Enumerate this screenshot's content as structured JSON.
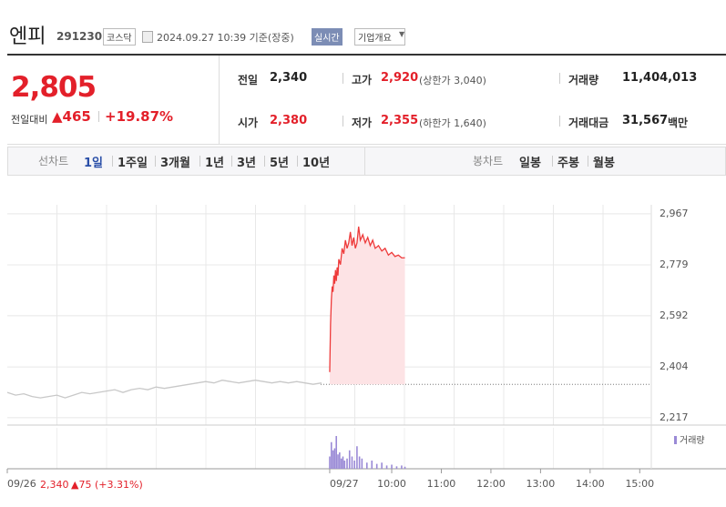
{
  "header": {
    "name": "엔피",
    "code": "291230",
    "market": "코스닥",
    "timestamp": "2024.09.27 10:39 기준(장중)",
    "realtime": "실시간",
    "company_info": "기업개요"
  },
  "quote": {
    "price": "2,805",
    "change_label": "전일대비",
    "change": "▲465",
    "change_rate": "+19.87%",
    "stats": [
      {
        "label": "전일",
        "value": "2,340"
      },
      {
        "label": "고가",
        "value": "2,920",
        "note": "(상한가 3,040)"
      },
      {
        "label": "거래량",
        "value": "11,404,013"
      },
      {
        "label": "시가",
        "value": "2,380"
      },
      {
        "label": "저가",
        "value": "2,355",
        "note": "(하한가 1,640)"
      },
      {
        "label": "거래대금",
        "value": "31,567",
        "unit": "백만"
      }
    ]
  },
  "tabs": {
    "line_label": "선차트",
    "line": [
      "1일",
      "1주일",
      "3개월",
      "1년",
      "3년",
      "5년",
      "10년"
    ],
    "candle_label": "봉차트",
    "candle": [
      "일봉",
      "주봉",
      "월봉"
    ]
  },
  "chart_data": [
    {
      "type": "line",
      "baseline": 2340,
      "grid": true,
      "series": [
        {
          "color": "#c8c8c8",
          "x": [
            -405,
            -395,
            -385,
            -375,
            -365,
            -355,
            -345,
            -335,
            -325,
            -315,
            -305,
            -295,
            -285,
            -275,
            -265,
            -255,
            -245,
            -235,
            -225,
            -215,
            -205,
            -195,
            -185,
            -175,
            -165,
            -155,
            -145,
            -135,
            -125,
            -115,
            -105,
            -95,
            -85,
            -75,
            -65,
            -55,
            -45,
            -35,
            -25
          ],
          "values": [
            2310,
            2300,
            2305,
            2295,
            2290,
            2295,
            2300,
            2290,
            2300,
            2310,
            2305,
            2310,
            2315,
            2320,
            2310,
            2320,
            2325,
            2320,
            2330,
            2325,
            2330,
            2335,
            2340,
            2345,
            2350,
            2345,
            2355,
            2350,
            2345,
            2350,
            2355,
            2350,
            2345,
            2350,
            2345,
            2350,
            2345,
            2340,
            2345
          ]
        },
        {
          "color": "#ee3a3a",
          "fill": "#fde3e5",
          "x": [
            -15,
            -14,
            -13,
            -12,
            -11,
            -10,
            -9,
            -8,
            -7,
            -6,
            -5,
            -4,
            -2,
            0,
            2,
            4,
            6,
            8,
            10,
            12,
            14,
            16,
            18,
            20,
            22,
            25,
            28,
            31,
            34,
            37,
            40,
            44,
            48,
            52,
            56,
            60,
            64,
            68,
            72,
            76
          ],
          "values": [
            2385,
            2560,
            2650,
            2700,
            2680,
            2740,
            2710,
            2760,
            2720,
            2770,
            2740,
            2800,
            2780,
            2840,
            2820,
            2870,
            2840,
            2860,
            2900,
            2850,
            2880,
            2840,
            2860,
            2920,
            2870,
            2890,
            2860,
            2880,
            2850,
            2870,
            2840,
            2850,
            2830,
            2840,
            2815,
            2825,
            2810,
            2815,
            2805,
            2805
          ]
        }
      ],
      "xlim": [
        -405,
        374
      ],
      "ylim": [
        2190,
        3067
      ],
      "yticks": [
        {
          "value": 2217,
          "label": "2,217"
        },
        {
          "value": 2404,
          "label": "2,404"
        },
        {
          "value": 2592,
          "label": "2,592"
        },
        {
          "value": 2779,
          "label": "2,779"
        },
        {
          "value": 2967,
          "label": "2,967"
        }
      ],
      "xticks": [
        {
          "value": -405,
          "label": "09/26"
        },
        {
          "value": -15,
          "label": "09/27"
        },
        {
          "value": 60,
          "label": "10:00"
        },
        {
          "value": 120,
          "label": "11:00"
        },
        {
          "value": 180,
          "label": "12:00"
        },
        {
          "value": 240,
          "label": "13:00"
        },
        {
          "value": 300,
          "label": "14:00"
        },
        {
          "value": 360,
          "label": "15:00"
        }
      ]
    },
    {
      "type": "bar",
      "series": [
        {
          "name": "거래량",
          "color": "#9a8ad6",
          "x": [
            -15,
            -13,
            -11,
            -9,
            -7,
            -5,
            -3,
            -1,
            1,
            3,
            6,
            9,
            12,
            15,
            18,
            21,
            24,
            30,
            36,
            42,
            48,
            54,
            60,
            66,
            72,
            76
          ],
          "values": [
            300000,
            650000,
            450000,
            500000,
            800000,
            350000,
            400000,
            250000,
            300000,
            200000,
            250000,
            450000,
            300000,
            200000,
            550000,
            300000,
            250000,
            150000,
            200000,
            120000,
            150000,
            80000,
            100000,
            60000,
            80000,
            50000
          ]
        }
      ],
      "xlim": [
        -405,
        374
      ],
      "ylim": [
        0,
        1000000
      ]
    }
  ],
  "footer": {
    "date": "09/26",
    "close": "2,340",
    "change": "▲75",
    "rate": "(+3.31%)"
  }
}
